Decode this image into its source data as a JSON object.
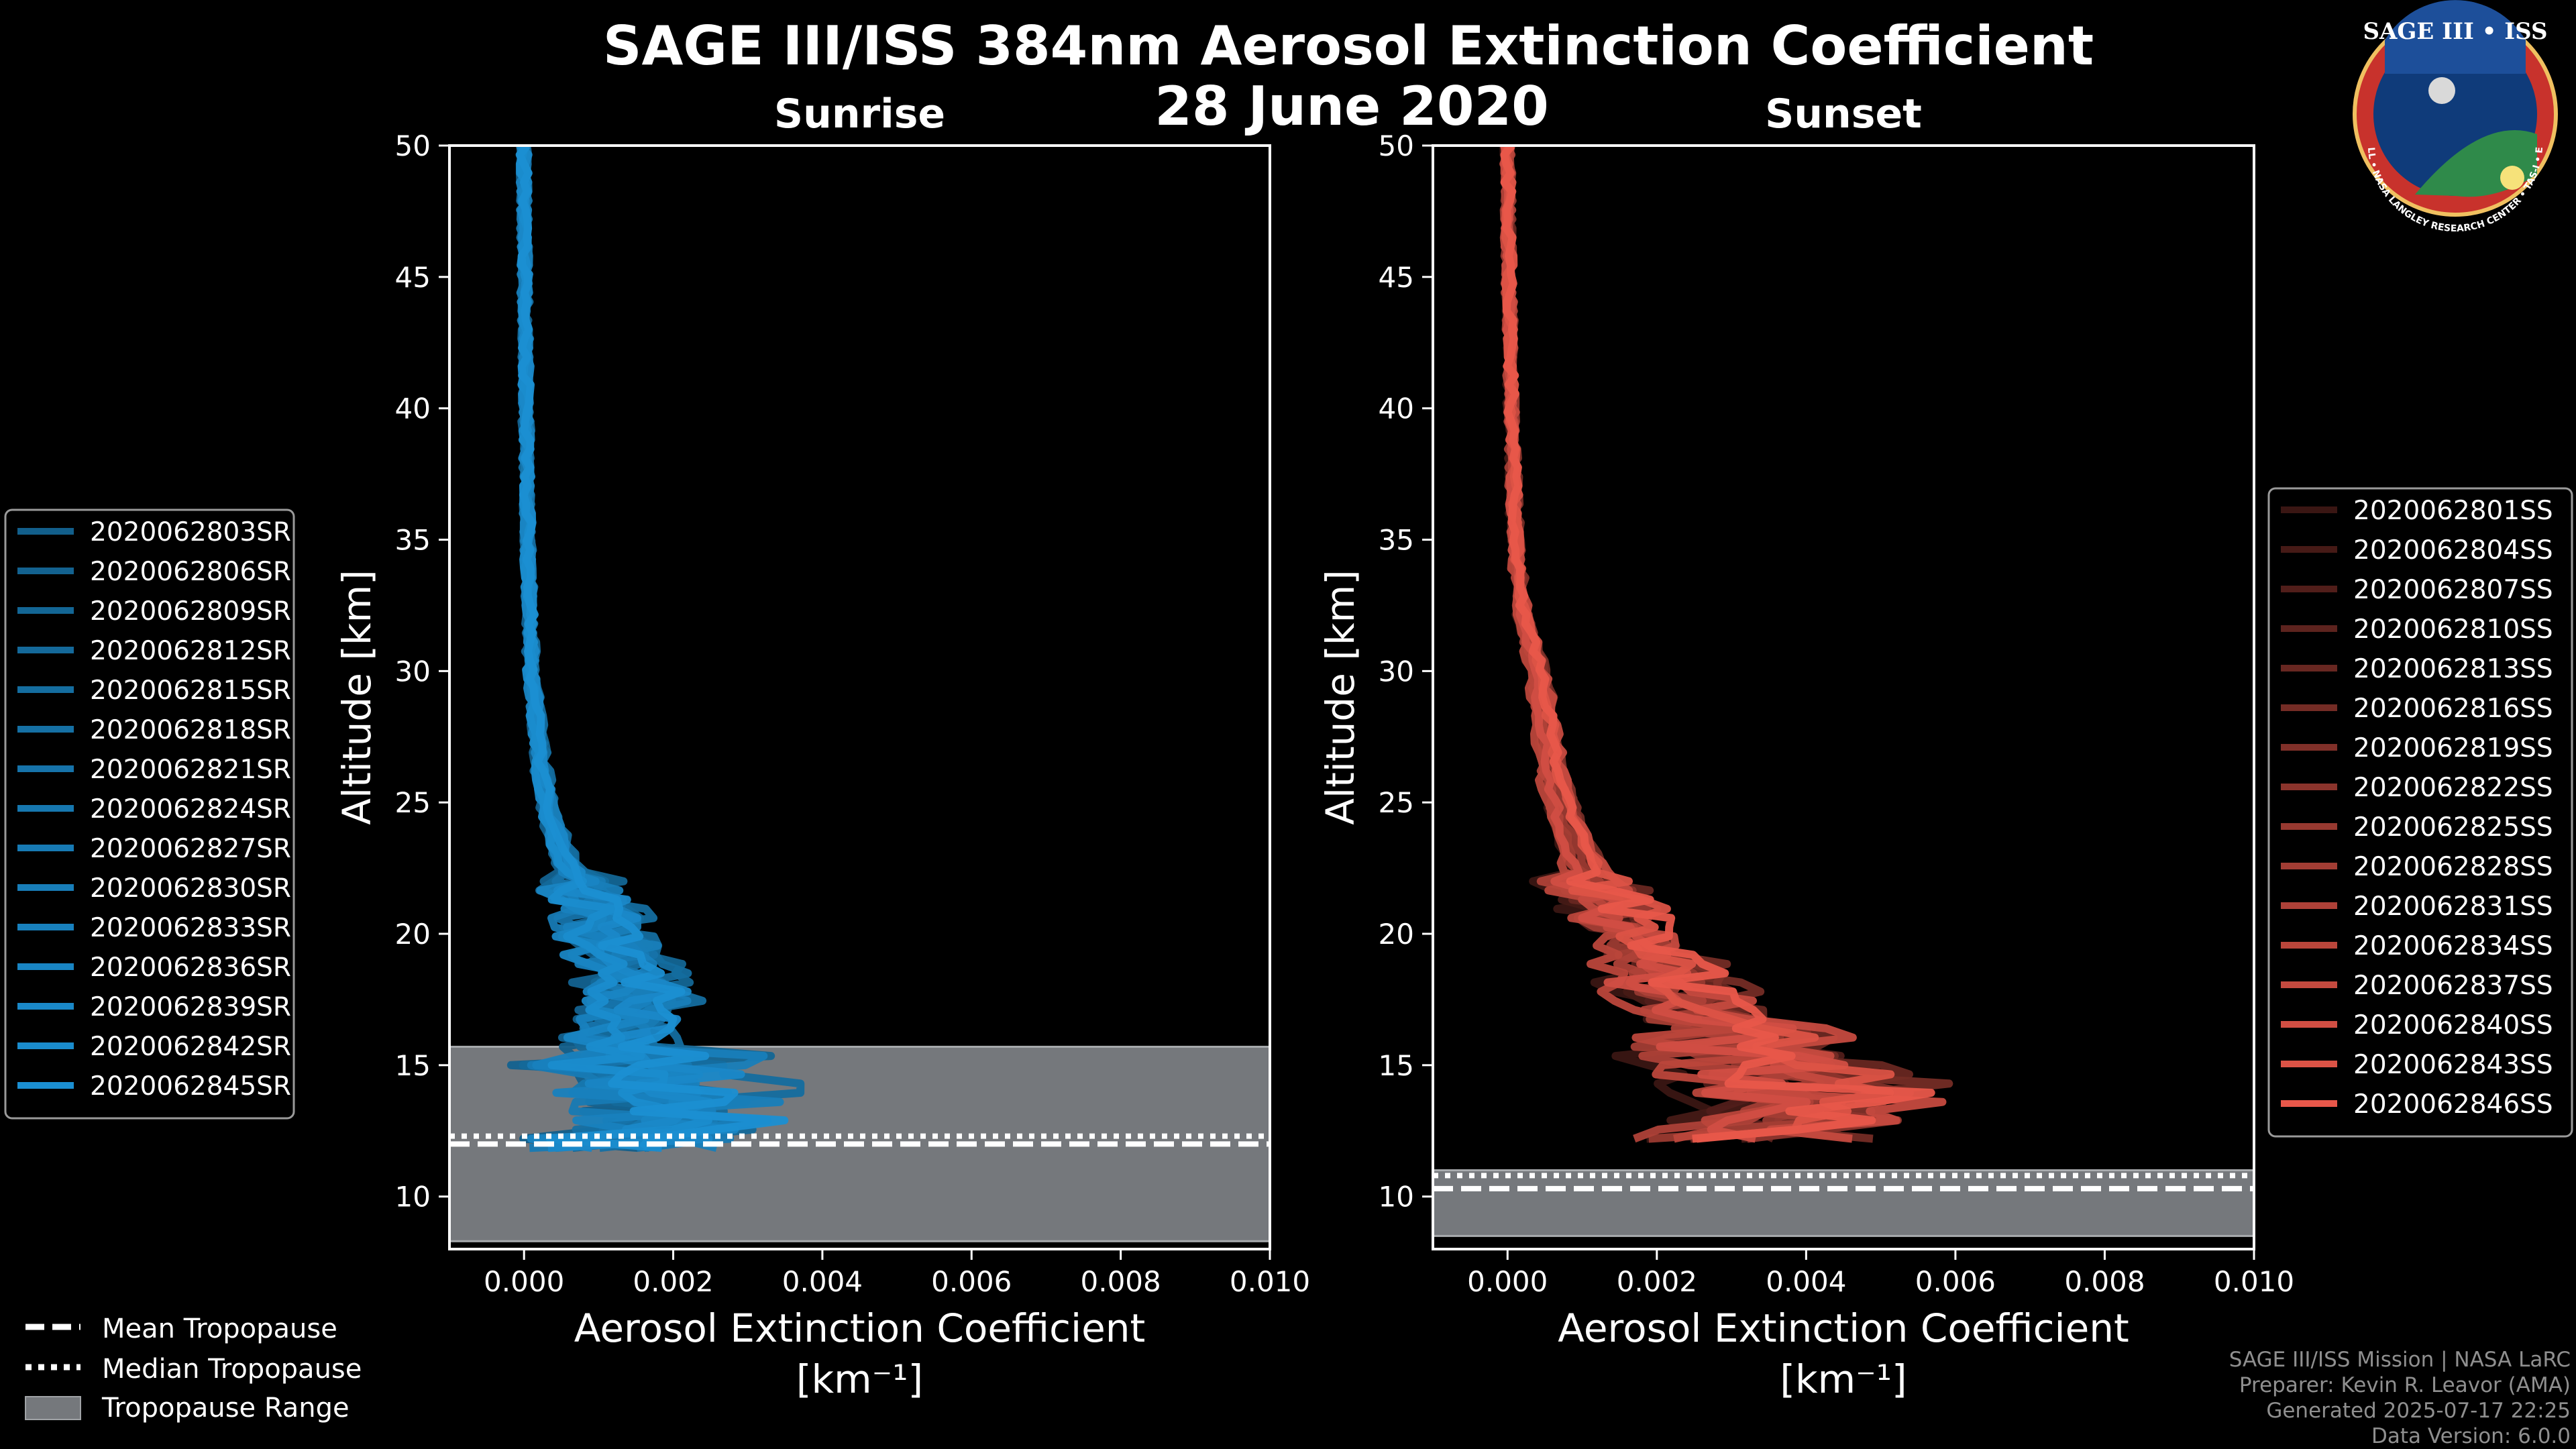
{
  "figure": {
    "title_line1": "SAGE III/ISS 384nm Aerosol Extinction Coefficient",
    "title_line2": "28 June 2020",
    "logo": {
      "text": "SAGE III • ISS",
      "ring_text": "BALL • NASA LANGLEY RESEARCH CENTER • TAS-I • ESA"
    },
    "credits": [
      "SAGE III/ISS Mission | NASA LaRC",
      "Preparer: Kevin R. Leavor (AMA)",
      "Generated 2025-07-17 22:25",
      "Data Version: 6.0.0"
    ],
    "tropopause_legend": [
      {
        "label": "Mean Tropopause",
        "style": "dashed"
      },
      {
        "label": "Median Tropopause",
        "style": "dotted"
      },
      {
        "label": "Tropopause Range",
        "style": "patch"
      }
    ]
  },
  "chart_data": [
    {
      "type": "line",
      "title": "Sunrise",
      "xlabel": "Aerosol Extinction Coefficient",
      "xunit": "[km⁻¹]",
      "ylabel": "Altitude [km]",
      "xlim": [
        -0.001,
        0.01
      ],
      "ylim": [
        8,
        50
      ],
      "xticks": [
        0.0,
        0.002,
        0.004,
        0.006,
        0.008,
        0.01
      ],
      "xtick_labels": [
        "0.000",
        "0.002",
        "0.004",
        "0.006",
        "0.008",
        "0.010"
      ],
      "yticks": [
        10,
        15,
        20,
        25,
        30,
        35,
        40,
        45,
        50
      ],
      "color": "#1b8fd2",
      "tropopause": {
        "mean": 12.0,
        "median": 12.3,
        "range": [
          8.3,
          15.7
        ]
      },
      "profile": {
        "altitude": [
          50,
          45,
          40,
          35,
          30,
          27,
          25,
          23,
          21,
          20,
          19,
          18,
          17,
          16,
          15,
          14.5,
          14,
          13.5,
          13,
          12.5,
          12
        ],
        "extinction": [
          0.0,
          1e-05,
          3e-05,
          5e-05,
          0.0001,
          0.0002,
          0.0003,
          0.0005,
          0.0009,
          0.0011,
          0.0013,
          0.0015,
          0.0014,
          0.0013,
          0.0012,
          0.0015,
          0.0016,
          0.0018,
          0.0017,
          0.0014,
          0.001
        ]
      },
      "series": [
        {
          "name": "2020062803SR"
        },
        {
          "name": "2020062806SR"
        },
        {
          "name": "2020062809SR"
        },
        {
          "name": "2020062812SR"
        },
        {
          "name": "2020062815SR"
        },
        {
          "name": "2020062818SR"
        },
        {
          "name": "2020062821SR"
        },
        {
          "name": "2020062824SR"
        },
        {
          "name": "2020062827SR"
        },
        {
          "name": "2020062830SR"
        },
        {
          "name": "2020062833SR"
        },
        {
          "name": "2020062836SR"
        },
        {
          "name": "2020062839SR"
        },
        {
          "name": "2020062842SR"
        },
        {
          "name": "2020062845SR"
        }
      ]
    },
    {
      "type": "line",
      "title": "Sunset",
      "xlabel": "Aerosol Extinction Coefficient",
      "xunit": "[km⁻¹]",
      "ylabel": "Altitude [km]",
      "xlim": [
        -0.001,
        0.01
      ],
      "ylim": [
        8,
        50
      ],
      "xticks": [
        0.0,
        0.002,
        0.004,
        0.006,
        0.008,
        0.01
      ],
      "xtick_labels": [
        "0.000",
        "0.002",
        "0.004",
        "0.006",
        "0.008",
        "0.010"
      ],
      "yticks": [
        10,
        15,
        20,
        25,
        30,
        35,
        40,
        45,
        50
      ],
      "color": "#e8574a",
      "tropopause": {
        "mean": 10.3,
        "median": 10.8,
        "range": [
          8.5,
          11.0
        ]
      },
      "profile": {
        "altitude": [
          50,
          45,
          40,
          35,
          32,
          30,
          28,
          26,
          24,
          22,
          20,
          19,
          18,
          17,
          16,
          15,
          14.5,
          14,
          13.5,
          13,
          12.5,
          12
        ],
        "extinction": [
          0.0,
          2e-05,
          5e-05,
          0.0001,
          0.0002,
          0.0004,
          0.0005,
          0.0006,
          0.0008,
          0.0011,
          0.0016,
          0.0019,
          0.0022,
          0.0025,
          0.0028,
          0.003,
          0.0032,
          0.0034,
          0.0035,
          0.0033,
          0.003,
          0.0025
        ]
      },
      "series": [
        {
          "name": "2020062801SS"
        },
        {
          "name": "2020062804SS"
        },
        {
          "name": "2020062807SS"
        },
        {
          "name": "2020062810SS"
        },
        {
          "name": "2020062813SS"
        },
        {
          "name": "2020062816SS"
        },
        {
          "name": "2020062819SS"
        },
        {
          "name": "2020062822SS"
        },
        {
          "name": "2020062825SS"
        },
        {
          "name": "2020062828SS"
        },
        {
          "name": "2020062831SS"
        },
        {
          "name": "2020062834SS"
        },
        {
          "name": "2020062837SS"
        },
        {
          "name": "2020062840SS"
        },
        {
          "name": "2020062843SS"
        },
        {
          "name": "2020062846SS"
        }
      ]
    }
  ]
}
